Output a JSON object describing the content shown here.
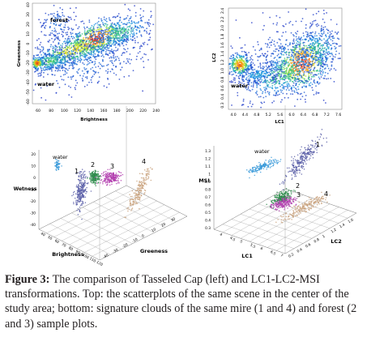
{
  "caption": {
    "label": "Figure 3:",
    "text": " The comparison of Tasseled Cap (left) and LC1-LC2-MSI transformations. Top: the scatterplots of the same scene in the center of the study area; bottom: signature clouds of the same mire (1 and 4) and forest (2 and 3) sample plots."
  },
  "chart_data": [
    {
      "type": "heatmap",
      "panel": "top-left",
      "xlabel": "Brightness",
      "ylabel": "Greenness",
      "x_ticks": [
        "60",
        "80",
        "100",
        "120",
        "140",
        "160",
        "180",
        "200",
        "220",
        "240"
      ],
      "y_ticks": [
        "-60",
        "-50",
        "-40",
        "-30",
        "-20",
        "-10",
        "0",
        "10",
        "20",
        "30",
        "40"
      ],
      "xlim": [
        50,
        245
      ],
      "ylim": [
        -62,
        45
      ],
      "annotations": [
        "forest",
        "water"
      ]
    },
    {
      "type": "heatmap",
      "panel": "top-right",
      "xlabel": "LC1",
      "ylabel": "LC2",
      "x_ticks": [
        "4.0",
        "4.4",
        "4.8",
        "5.2",
        "5.6",
        "6.0",
        "6.4",
        "6.8",
        "7.2",
        "7.6"
      ],
      "y_ticks": [
        "0.3",
        "0.4",
        "0.6",
        "0.8",
        "1.0",
        "1.2",
        "1.4",
        "1.6",
        "1.8",
        "2.0",
        "2.2",
        "2.4"
      ],
      "annotations": [
        "water"
      ]
    },
    {
      "type": "scatter",
      "panel": "bottom-left",
      "xlabel": "Brightness",
      "ylabel": "Wetness",
      "zlabel": "Greeness",
      "z_ticks": [
        "20",
        "10",
        "0",
        "-10",
        "-20",
        "-30",
        "-40"
      ],
      "x_ticks": [
        "40",
        "50",
        "60",
        "70",
        "80",
        "90",
        "100",
        "110",
        "120"
      ],
      "y_ticks": [
        "-40",
        "-30",
        "-20",
        "-10",
        "0",
        "10",
        "20",
        "30"
      ],
      "annotations": [
        "water",
        "1",
        "2",
        "3",
        "4"
      ]
    },
    {
      "type": "scatter",
      "panel": "bottom-right",
      "xlabel": "LC1",
      "ylabel": "LC2",
      "zlabel": "MSI",
      "z_ticks": [
        "1.3",
        "1.2",
        "1.1",
        "1",
        "0.9",
        "0.8",
        "0.7",
        "0.6",
        "0.5",
        "0.4",
        "0.3"
      ],
      "x_ticks": [
        "4",
        "4.5",
        "5",
        "5.5",
        "6",
        "6.5",
        "7"
      ],
      "y_ticks": [
        "0.2",
        "0.4",
        "0.6",
        "0.8",
        "1",
        "1.2",
        "1.4",
        "1.6"
      ],
      "annotations": [
        "water",
        "1",
        "2",
        "3",
        "4"
      ]
    }
  ],
  "colors": {
    "water": "#3a9ad9",
    "mire_1": "#5b5fa8",
    "forest_2": "#2e8b4b",
    "forest_3": "#b23cae",
    "mire_4": "#c8a07a"
  }
}
